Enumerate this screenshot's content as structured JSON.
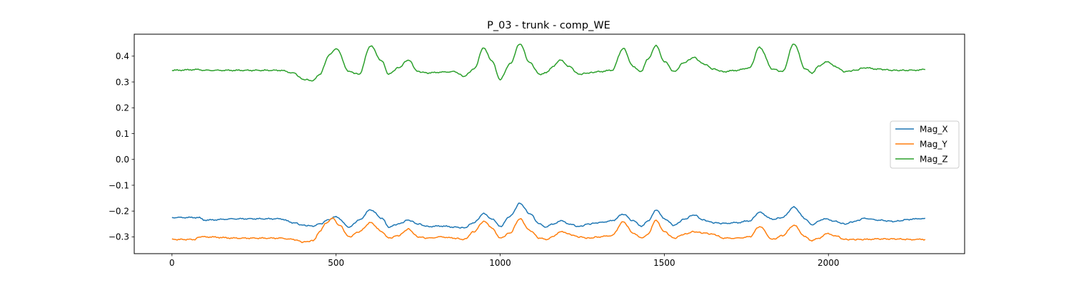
{
  "chart_data": {
    "type": "line",
    "title": "P_03 - trunk - comp_WE",
    "xlabel": "",
    "ylabel": "",
    "xlim": [
      -115,
      2415
    ],
    "ylim": [
      -0.365,
      0.485
    ],
    "xticks": [
      0,
      500,
      1000,
      1500,
      2000
    ],
    "xtick_labels": [
      "0",
      "500",
      "1000",
      "1500",
      "2000"
    ],
    "yticks": [
      -0.3,
      -0.2,
      -0.1,
      0.0,
      0.1,
      0.2,
      0.3,
      0.4
    ],
    "ytick_labels": [
      "−0.3",
      "−0.2",
      "−0.1",
      "0.0",
      "0.1",
      "0.2",
      "0.3",
      "0.4"
    ],
    "grid": false,
    "legend_position": "center-right",
    "series": [
      {
        "name": "Mag_X",
        "color": "#1f77b4",
        "x": [
          0,
          80,
          100,
          200,
          330,
          370,
          400,
          430,
          450,
          480,
          500,
          540,
          570,
          605,
          640,
          660,
          690,
          720,
          750,
          780,
          820,
          860,
          890,
          920,
          950,
          975,
          1000,
          1030,
          1060,
          1090,
          1120,
          1140,
          1160,
          1185,
          1210,
          1240,
          1270,
          1300,
          1340,
          1375,
          1405,
          1430,
          1450,
          1475,
          1500,
          1530,
          1560,
          1590,
          1620,
          1650,
          1680,
          1720,
          1760,
          1790,
          1830,
          1860,
          1895,
          1930,
          1950,
          1970,
          1995,
          2020,
          2050,
          2080,
          2110,
          2150,
          2200,
          2250,
          2295
        ],
        "y": [
          -0.225,
          -0.225,
          -0.235,
          -0.23,
          -0.23,
          -0.245,
          -0.255,
          -0.258,
          -0.25,
          -0.232,
          -0.222,
          -0.262,
          -0.235,
          -0.195,
          -0.228,
          -0.262,
          -0.25,
          -0.235,
          -0.25,
          -0.26,
          -0.258,
          -0.262,
          -0.265,
          -0.245,
          -0.21,
          -0.23,
          -0.26,
          -0.22,
          -0.17,
          -0.21,
          -0.25,
          -0.262,
          -0.25,
          -0.238,
          -0.25,
          -0.26,
          -0.25,
          -0.245,
          -0.238,
          -0.212,
          -0.238,
          -0.258,
          -0.24,
          -0.195,
          -0.23,
          -0.255,
          -0.232,
          -0.215,
          -0.235,
          -0.245,
          -0.248,
          -0.245,
          -0.238,
          -0.205,
          -0.232,
          -0.225,
          -0.185,
          -0.23,
          -0.255,
          -0.238,
          -0.23,
          -0.24,
          -0.25,
          -0.24,
          -0.228,
          -0.235,
          -0.24,
          -0.232,
          -0.228
        ]
      },
      {
        "name": "Mag_Y",
        "color": "#ff7f0e",
        "x": [
          0,
          70,
          80,
          100,
          200,
          330,
          370,
          400,
          430,
          450,
          470,
          490,
          510,
          540,
          570,
          605,
          640,
          660,
          690,
          720,
          750,
          780,
          820,
          860,
          890,
          920,
          950,
          975,
          1000,
          1030,
          1060,
          1090,
          1120,
          1140,
          1160,
          1185,
          1210,
          1240,
          1270,
          1300,
          1340,
          1375,
          1405,
          1430,
          1450,
          1475,
          1500,
          1530,
          1560,
          1590,
          1620,
          1650,
          1680,
          1720,
          1760,
          1790,
          1830,
          1860,
          1895,
          1930,
          1950,
          1970,
          1995,
          2020,
          2050,
          2080,
          2110,
          2150,
          2200,
          2250,
          2295
        ],
        "y": [
          -0.31,
          -0.31,
          -0.3,
          -0.3,
          -0.305,
          -0.305,
          -0.31,
          -0.32,
          -0.315,
          -0.28,
          -0.245,
          -0.228,
          -0.255,
          -0.3,
          -0.28,
          -0.245,
          -0.28,
          -0.305,
          -0.295,
          -0.27,
          -0.3,
          -0.305,
          -0.3,
          -0.305,
          -0.31,
          -0.28,
          -0.24,
          -0.265,
          -0.305,
          -0.285,
          -0.23,
          -0.275,
          -0.305,
          -0.31,
          -0.3,
          -0.278,
          -0.29,
          -0.3,
          -0.305,
          -0.3,
          -0.295,
          -0.242,
          -0.285,
          -0.305,
          -0.29,
          -0.235,
          -0.28,
          -0.305,
          -0.29,
          -0.28,
          -0.285,
          -0.29,
          -0.305,
          -0.305,
          -0.3,
          -0.26,
          -0.31,
          -0.295,
          -0.255,
          -0.3,
          -0.315,
          -0.305,
          -0.288,
          -0.295,
          -0.31,
          -0.31,
          -0.31,
          -0.308,
          -0.308,
          -0.31,
          -0.31
        ],
        "note_removed": false
      },
      {
        "name": "Mag_Z",
        "color": "#2ca02c",
        "x": [
          0,
          80,
          100,
          200,
          330,
          370,
          400,
          430,
          450,
          480,
          500,
          540,
          570,
          605,
          640,
          660,
          690,
          720,
          750,
          780,
          820,
          860,
          890,
          920,
          950,
          975,
          1000,
          1030,
          1060,
          1090,
          1120,
          1140,
          1160,
          1185,
          1210,
          1240,
          1270,
          1300,
          1340,
          1375,
          1405,
          1430,
          1450,
          1475,
          1500,
          1530,
          1560,
          1590,
          1620,
          1650,
          1680,
          1720,
          1760,
          1790,
          1830,
          1860,
          1895,
          1930,
          1950,
          1970,
          1995,
          2020,
          2050,
          2080,
          2110,
          2150,
          2200,
          2250,
          2295
        ],
        "y": [
          0.345,
          0.348,
          0.345,
          0.345,
          0.345,
          0.335,
          0.31,
          0.305,
          0.33,
          0.405,
          0.43,
          0.34,
          0.33,
          0.44,
          0.38,
          0.33,
          0.355,
          0.385,
          0.34,
          0.335,
          0.338,
          0.34,
          0.322,
          0.35,
          0.433,
          0.38,
          0.31,
          0.37,
          0.448,
          0.375,
          0.33,
          0.335,
          0.36,
          0.385,
          0.36,
          0.33,
          0.335,
          0.34,
          0.345,
          0.43,
          0.36,
          0.34,
          0.39,
          0.44,
          0.38,
          0.34,
          0.375,
          0.395,
          0.37,
          0.35,
          0.34,
          0.345,
          0.355,
          0.435,
          0.35,
          0.34,
          0.448,
          0.35,
          0.335,
          0.36,
          0.38,
          0.36,
          0.34,
          0.345,
          0.355,
          0.35,
          0.345,
          0.345,
          0.348
        ]
      }
    ]
  }
}
